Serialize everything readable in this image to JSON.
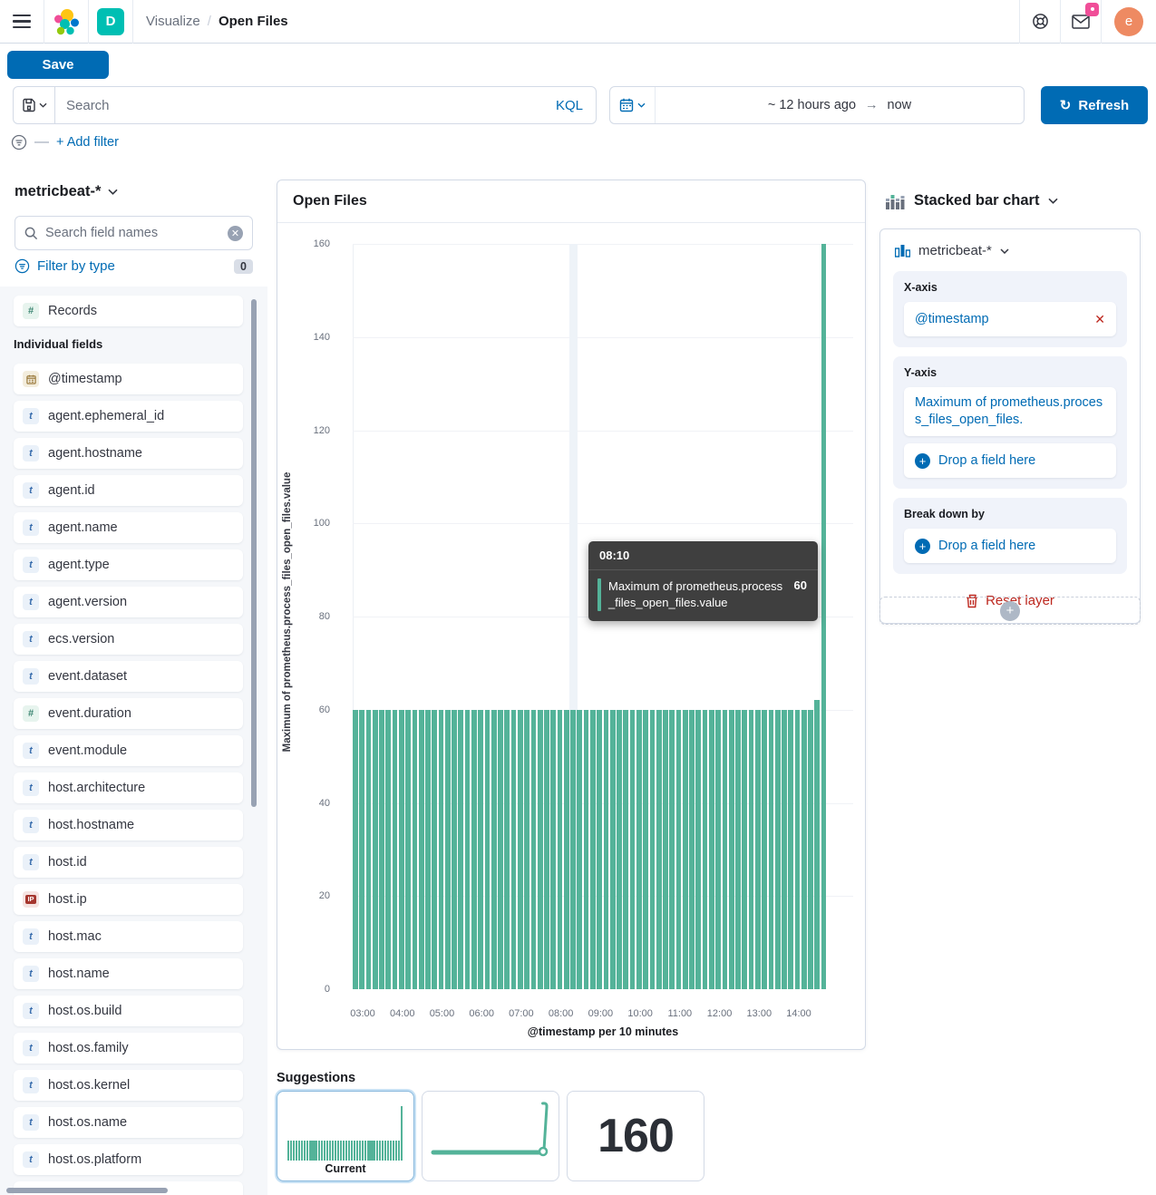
{
  "topbar": {
    "breadcrumb_parent": "Visualize",
    "breadcrumb_sep": "/",
    "breadcrumb_current": "Open Files",
    "space_badge": "D",
    "avatar_initial": "e"
  },
  "actions": {
    "save": "Save",
    "refresh": "Refresh"
  },
  "query_bar": {
    "search_placeholder": "Search",
    "language": "KQL",
    "time_from": "~ 12 hours ago",
    "time_arrow": "→",
    "time_to": "now"
  },
  "filter_bar": {
    "dash": "—",
    "add_filter": "+ Add filter"
  },
  "sidebar": {
    "index_pattern": "metricbeat-*",
    "search_placeholder": "Search field names",
    "filter_by_type": "Filter by type",
    "filter_count": "0",
    "special_fields": [
      {
        "name": "Records",
        "type": "number"
      }
    ],
    "section_label": "Individual fields",
    "fields": [
      {
        "name": "@timestamp",
        "type": "date"
      },
      {
        "name": "agent.ephemeral_id",
        "type": "keyword"
      },
      {
        "name": "agent.hostname",
        "type": "keyword"
      },
      {
        "name": "agent.id",
        "type": "keyword"
      },
      {
        "name": "agent.name",
        "type": "keyword"
      },
      {
        "name": "agent.type",
        "type": "keyword"
      },
      {
        "name": "agent.version",
        "type": "keyword"
      },
      {
        "name": "ecs.version",
        "type": "keyword"
      },
      {
        "name": "event.dataset",
        "type": "keyword"
      },
      {
        "name": "event.duration",
        "type": "number"
      },
      {
        "name": "event.module",
        "type": "keyword"
      },
      {
        "name": "host.architecture",
        "type": "keyword"
      },
      {
        "name": "host.hostname",
        "type": "keyword"
      },
      {
        "name": "host.id",
        "type": "keyword"
      },
      {
        "name": "host.ip",
        "type": "ip"
      },
      {
        "name": "host.mac",
        "type": "keyword"
      },
      {
        "name": "host.name",
        "type": "keyword"
      },
      {
        "name": "host.os.build",
        "type": "keyword"
      },
      {
        "name": "host.os.family",
        "type": "keyword"
      },
      {
        "name": "host.os.kernel",
        "type": "keyword"
      },
      {
        "name": "host.os.name",
        "type": "keyword"
      },
      {
        "name": "host.os.platform",
        "type": "keyword"
      }
    ]
  },
  "chart_panel": {
    "title": "Open Files"
  },
  "chart_data": {
    "type": "bar",
    "title": "Open Files",
    "xlabel": "@timestamp per 10 minutes",
    "ylabel": "Maximum of prometheus.process_files_open_files.value",
    "x_tick_labels": [
      "03:00",
      "04:00",
      "05:00",
      "06:00",
      "07:00",
      "08:00",
      "09:00",
      "10:00",
      "11:00",
      "12:00",
      "13:00",
      "14:00"
    ],
    "y_ticks": [
      0,
      20,
      40,
      60,
      80,
      100,
      120,
      140,
      160
    ],
    "ylim": [
      0,
      160
    ],
    "bucket_interval_minutes": 10,
    "bar_color": "#54B399",
    "series": [
      {
        "name": "Maximum of prometheus.process_files_open_files.value",
        "values": [
          60,
          60,
          60,
          60,
          60,
          60,
          60,
          60,
          60,
          60,
          60,
          60,
          60,
          60,
          60,
          60,
          60,
          60,
          60,
          60,
          60,
          60,
          60,
          60,
          60,
          60,
          60,
          60,
          60,
          60,
          60,
          60,
          60,
          60,
          60,
          60,
          60,
          60,
          60,
          60,
          60,
          60,
          60,
          60,
          60,
          60,
          60,
          60,
          60,
          60,
          60,
          60,
          60,
          60,
          60,
          60,
          60,
          60,
          60,
          60,
          60,
          60,
          60,
          60,
          60,
          60,
          60,
          60,
          60,
          60,
          62,
          160
        ]
      }
    ],
    "tooltip": {
      "header": "08:10",
      "label": "Maximum of prometheus.process_files_open_files.value",
      "value": "60",
      "hover_index": 33
    },
    "legend": "off",
    "grid": "horizontal"
  },
  "suggestions": {
    "label": "Suggestions",
    "current_label": "Current",
    "metric_value": "160"
  },
  "config_panel": {
    "chart_type": "Stacked bar chart",
    "layer_index_pattern": "metricbeat-*",
    "x_axis_label": "X-axis",
    "x_axis_value": "@timestamp",
    "x_axis_remove": "✕",
    "y_axis_label": "Y-axis",
    "y_axis_value": "Maximum of prometheus.process_files_open_files.",
    "drop_field_label": "Drop a field here",
    "break_down_label": "Break down by",
    "reset_layer": "Reset layer"
  },
  "colors": {
    "primary_blue": "#006BB4",
    "bar_teal": "#54B399",
    "danger_red": "#BD271E",
    "space_teal": "#00BFB3",
    "avatar_orange": "#EE8A62",
    "notification_pink": "#F04E98",
    "border": "#D3DAE6",
    "tooltip_bg": "#3F3F3F"
  }
}
